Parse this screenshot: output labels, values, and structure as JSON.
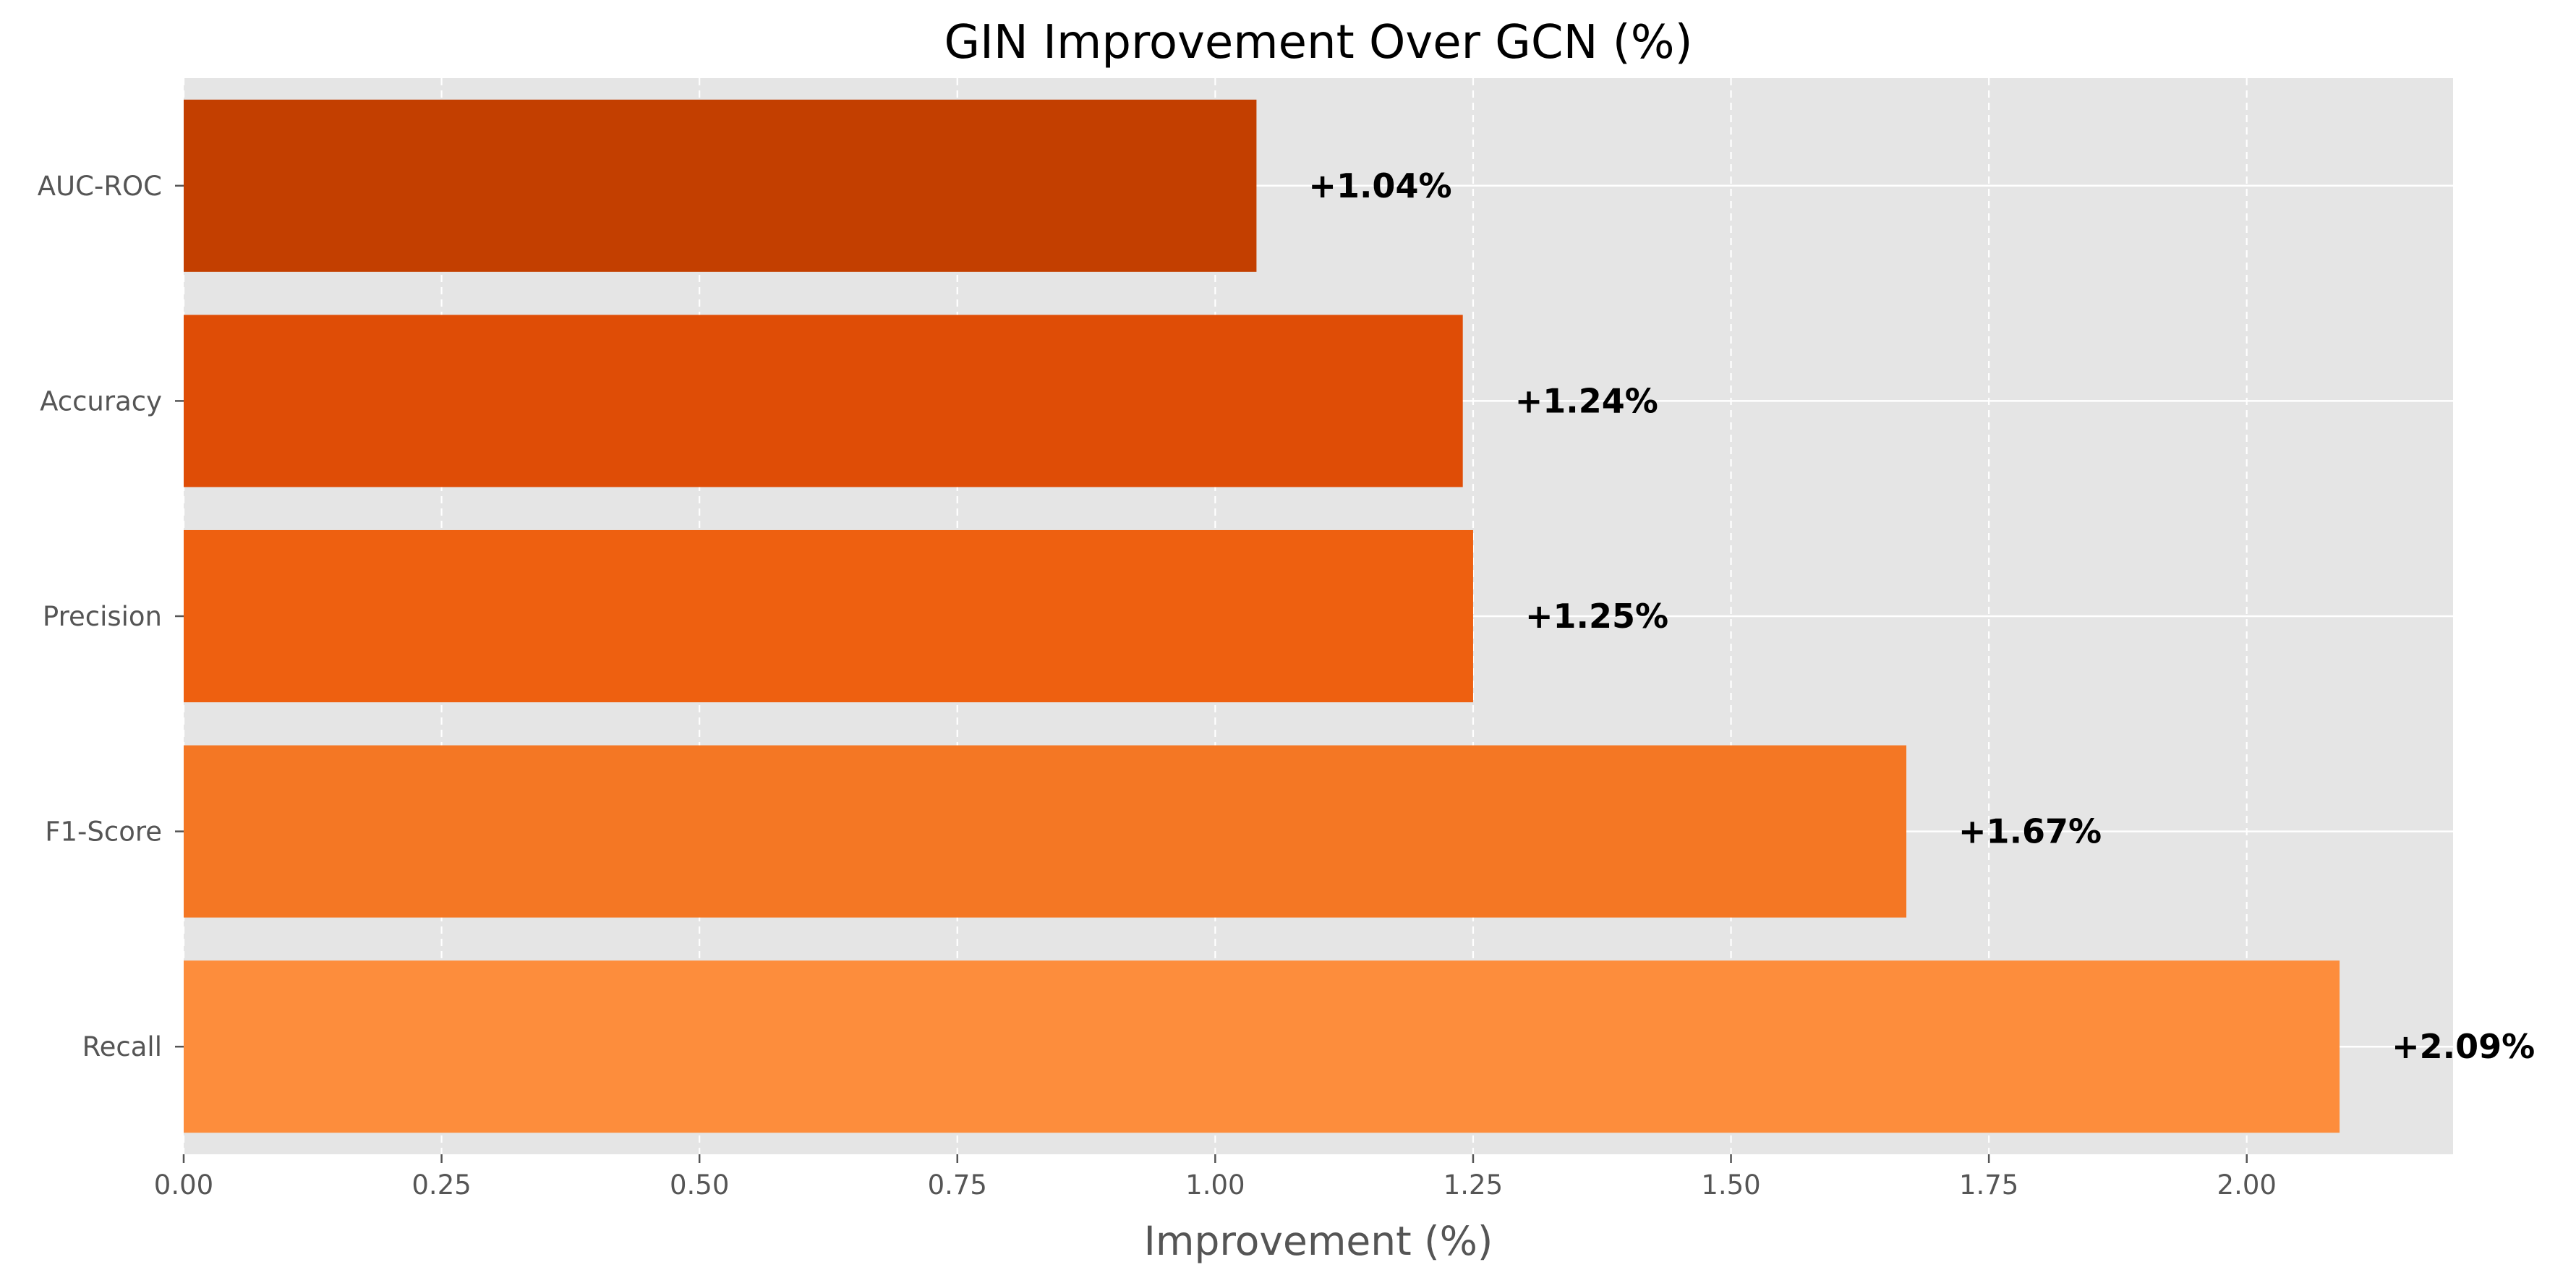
{
  "chart_data": {
    "type": "bar",
    "orientation": "horizontal",
    "title": "GIN Improvement Over GCN (%)",
    "xlabel": "Improvement (%)",
    "ylabel": "",
    "categories": [
      "AUC-ROC",
      "Accuracy",
      "Precision",
      "F1-Score",
      "Recall"
    ],
    "values": [
      1.04,
      1.24,
      1.25,
      1.67,
      2.09
    ],
    "data_labels": [
      "+1.04%",
      "+1.24%",
      "+1.25%",
      "+1.67%",
      "+2.09%"
    ],
    "bar_colors": [
      "#c33f00",
      "#df4d06",
      "#ee6010",
      "#f47724",
      "#fd8d3c"
    ],
    "xlim": [
      0,
      2.2
    ],
    "xticks": [
      0,
      0.25,
      0.5,
      0.75,
      1.0,
      1.25,
      1.5,
      1.75,
      2.0
    ],
    "xtick_labels": [
      "0.00",
      "0.25",
      "0.50",
      "0.75",
      "1.00",
      "1.25",
      "1.50",
      "1.75",
      "2.00"
    ],
    "grid": true,
    "colors": {
      "background": "#e5e5e5",
      "grid": "#ffffff",
      "text": "#555555"
    }
  }
}
